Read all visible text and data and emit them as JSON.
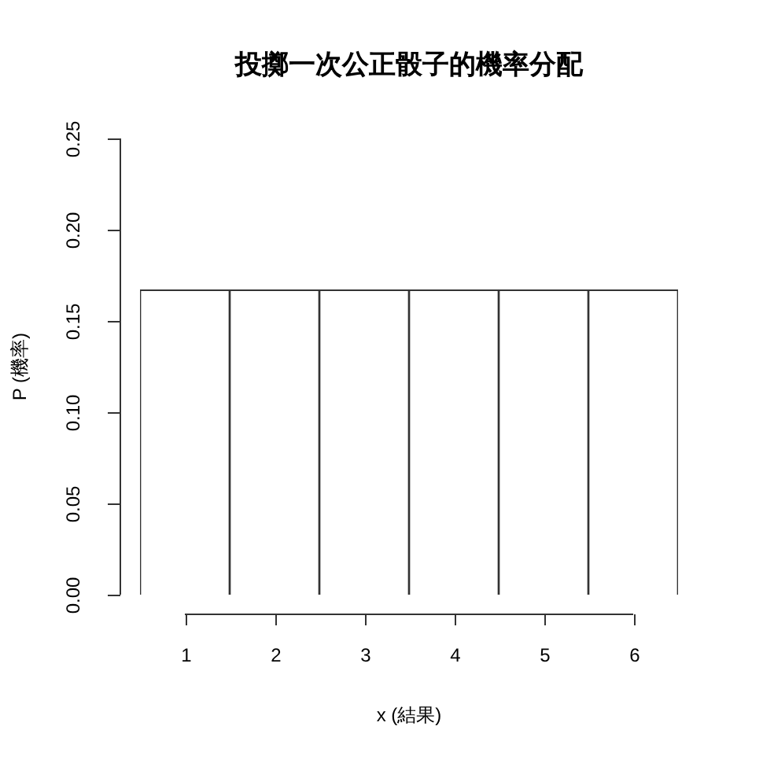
{
  "chart_data": {
    "type": "bar",
    "title": "投擲一次公正骰子的機率分配",
    "xlabel": "x (結果)",
    "ylabel": "P (機率)",
    "categories": [
      "1",
      "2",
      "3",
      "4",
      "5",
      "6"
    ],
    "values": [
      0.167,
      0.167,
      0.167,
      0.167,
      0.167,
      0.167
    ],
    "color": "#ffffff",
    "ylim": [
      0,
      0.25
    ],
    "yticks": [
      {
        "value": 0,
        "label": "0.00"
      },
      {
        "value": 0.05,
        "label": "0.05"
      },
      {
        "value": 0.1,
        "label": "0.10"
      },
      {
        "value": 0.15,
        "label": "0.15"
      },
      {
        "value": 0.2,
        "label": "0.20"
      },
      {
        "value": 0.25,
        "label": "0.25"
      }
    ]
  }
}
